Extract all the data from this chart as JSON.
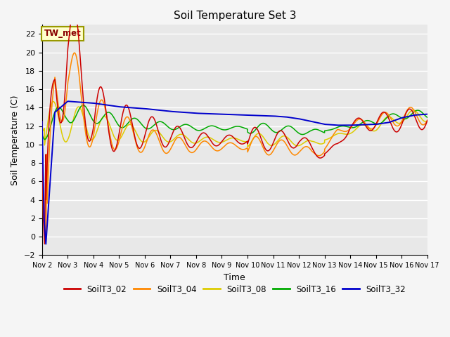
{
  "title": "Soil Temperature Set 3",
  "xlabel": "Time",
  "ylabel": "Soil Temperature (C)",
  "ylim": [
    -2,
    23
  ],
  "yticks": [
    -2,
    0,
    2,
    4,
    6,
    8,
    10,
    12,
    14,
    16,
    18,
    20,
    22
  ],
  "xtick_labels": [
    "Nov 2",
    "Nov 3",
    "Nov 4",
    "Nov 5",
    "Nov 6",
    "Nov 7",
    "Nov 8",
    "Nov 9",
    "Nov 10",
    "Nov 11",
    "Nov 12",
    "Nov 13",
    "Nov 14",
    "Nov 15",
    "Nov 16",
    "Nov 17"
  ],
  "colors": {
    "SoilT3_02": "#cc0000",
    "SoilT3_04": "#ff8800",
    "SoilT3_08": "#ddcc00",
    "SoilT3_16": "#00aa00",
    "SoilT3_32": "#0000cc"
  },
  "legend_label": "TW_met",
  "background_color": "#e8e8e8",
  "grid_color": "#ffffff",
  "figsize": [
    6.4,
    4.8
  ],
  "dpi": 100
}
